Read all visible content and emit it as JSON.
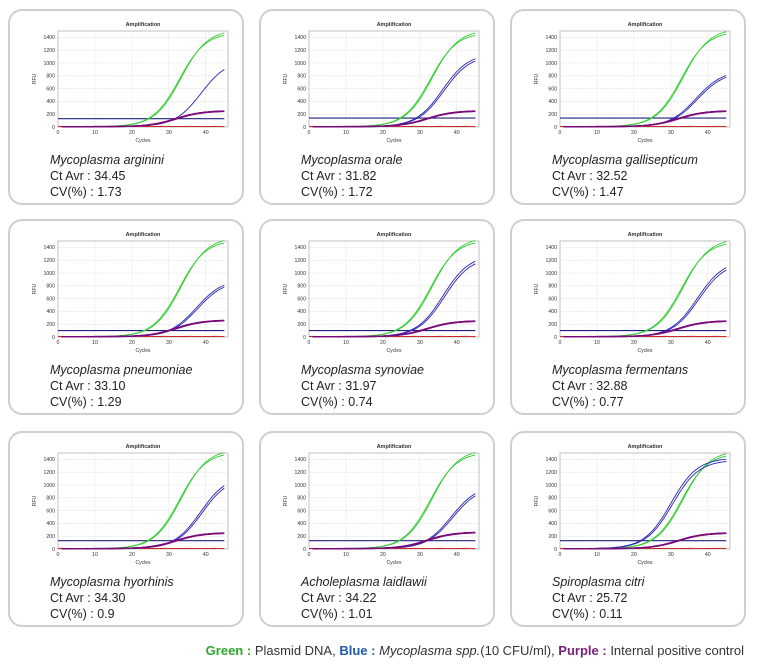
{
  "colors": {
    "green": "#33cc33",
    "blue": "#2727b6",
    "purple": "#7a0a7a",
    "threshold": "#202080",
    "baseline_red": "#cc2222"
  },
  "legend": {
    "green_key": "Green :",
    "green_text": "Plasmid DNA,",
    "blue_key": "Blue :",
    "blue_text_italic": "Mycoplasma spp.",
    "blue_text": "(10 CFU/ml),",
    "purple_key": "Purple :",
    "purple_text": "Internal positive control"
  },
  "chart_data": [
    {
      "type": "line",
      "title": "Amplification",
      "xlabel": "Cycles",
      "ylabel": "RFU",
      "xlim": [
        0,
        46
      ],
      "ylim": [
        0,
        1500
      ],
      "xticks": [
        0,
        10,
        20,
        30,
        40
      ],
      "yticks": [
        0,
        200,
        400,
        600,
        800,
        1000,
        1200,
        1400
      ],
      "threshold": 130,
      "series": [
        {
          "name": "Plasmid DNA",
          "color_key": "green",
          "ct": 29.0,
          "plateau": 1520,
          "replicates": [
            0,
            -0.5
          ]
        },
        {
          "name": "Mycoplasma spp. (10 CFU/ml)",
          "color_key": "blue",
          "ct": 34.45,
          "plateau": 1050,
          "replicates": [
            0
          ]
        },
        {
          "name": "Internal positive control",
          "color_key": "purple",
          "ct": 27.5,
          "plateau": 250,
          "replicates": [
            0,
            0.3
          ]
        }
      ],
      "species": "Mycoplasma arginini",
      "ct_text": "Ct Avr : 34.45",
      "cv_text": "CV(%) : 1.73"
    },
    {
      "type": "line",
      "title": "Amplification",
      "xlabel": "Cycles",
      "ylabel": "RFU",
      "xlim": [
        0,
        46
      ],
      "ylim": [
        0,
        1500
      ],
      "xticks": [
        0,
        10,
        20,
        30,
        40
      ],
      "yticks": [
        0,
        200,
        400,
        600,
        800,
        1000,
        1200,
        1400
      ],
      "threshold": 140,
      "series": [
        {
          "name": "Plasmid DNA",
          "color_key": "green",
          "ct": 29.0,
          "plateau": 1520,
          "replicates": [
            0,
            -0.5
          ]
        },
        {
          "name": "Mycoplasma spp. (10 CFU/ml)",
          "color_key": "blue",
          "ct": 31.82,
          "plateau": 1150,
          "replicates": [
            0,
            0.4
          ]
        },
        {
          "name": "Internal positive control",
          "color_key": "purple",
          "ct": 27.5,
          "plateau": 250,
          "replicates": [
            0,
            0.3
          ]
        }
      ],
      "species": "Mycoplasma orale",
      "ct_text": "Ct Avr : 31.82",
      "cv_text": "CV(%) : 1.72"
    },
    {
      "type": "line",
      "title": "Amplification",
      "xlabel": "Cycles",
      "ylabel": "RFU",
      "xlim": [
        0,
        46
      ],
      "ylim": [
        0,
        1500
      ],
      "xticks": [
        0,
        10,
        20,
        30,
        40
      ],
      "yticks": [
        0,
        200,
        400,
        600,
        800,
        1000,
        1200,
        1400
      ],
      "threshold": 140,
      "series": [
        {
          "name": "Plasmid DNA",
          "color_key": "green",
          "ct": 29.0,
          "plateau": 1540,
          "replicates": [
            0,
            -0.5
          ]
        },
        {
          "name": "Mycoplasma spp. (10 CFU/ml)",
          "color_key": "blue",
          "ct": 32.52,
          "plateau": 880,
          "replicates": [
            0,
            0.4
          ]
        },
        {
          "name": "Internal positive control",
          "color_key": "purple",
          "ct": 27.5,
          "plateau": 250,
          "replicates": [
            0,
            0.3
          ]
        }
      ],
      "species": "Mycoplasma gallisepticum",
      "ct_text": "Ct Avr : 32.52",
      "cv_text": "CV(%) : 1.47"
    },
    {
      "type": "line",
      "title": "Amplification",
      "xlabel": "Cycles",
      "ylabel": "RFU",
      "xlim": [
        0,
        46
      ],
      "ylim": [
        0,
        1500
      ],
      "xticks": [
        0,
        10,
        20,
        30,
        40
      ],
      "yticks": [
        0,
        200,
        400,
        600,
        800,
        1000,
        1200,
        1400
      ],
      "threshold": 100,
      "series": [
        {
          "name": "Plasmid DNA",
          "color_key": "green",
          "ct": 29.0,
          "plateau": 1560,
          "replicates": [
            0,
            -0.5
          ]
        },
        {
          "name": "Mycoplasma spp. (10 CFU/ml)",
          "color_key": "blue",
          "ct": 33.1,
          "plateau": 900,
          "replicates": [
            0,
            0.4
          ]
        },
        {
          "name": "Internal positive control",
          "color_key": "purple",
          "ct": 27.5,
          "plateau": 260,
          "replicates": [
            0,
            0.3
          ]
        }
      ],
      "species": "Mycoplasma pneumoniae",
      "ct_text": "Ct Avr : 33.10",
      "cv_text": "CV(%) : 1.29"
    },
    {
      "type": "line",
      "title": "Amplification",
      "xlabel": "Cycles",
      "ylabel": "RFU",
      "xlim": [
        0,
        46
      ],
      "ylim": [
        0,
        1500
      ],
      "xticks": [
        0,
        10,
        20,
        30,
        40
      ],
      "yticks": [
        0,
        200,
        400,
        600,
        800,
        1000,
        1200,
        1400
      ],
      "threshold": 100,
      "series": [
        {
          "name": "Plasmid DNA",
          "color_key": "green",
          "ct": 29.0,
          "plateau": 1560,
          "replicates": [
            0,
            -0.5
          ]
        },
        {
          "name": "Mycoplasma spp. (10 CFU/ml)",
          "color_key": "blue",
          "ct": 31.97,
          "plateau": 1280,
          "replicates": [
            0,
            0.4
          ]
        },
        {
          "name": "Internal positive control",
          "color_key": "purple",
          "ct": 27.5,
          "plateau": 250,
          "replicates": [
            0,
            0.3
          ]
        }
      ],
      "species": "Mycoplasma synoviae",
      "ct_text": "Ct Avr : 31.97",
      "cv_text": "CV(%) : 0.74"
    },
    {
      "type": "line",
      "title": "Amplification",
      "xlabel": "Cycles",
      "ylabel": "RFU",
      "xlim": [
        0,
        46
      ],
      "ylim": [
        0,
        1500
      ],
      "xticks": [
        0,
        10,
        20,
        30,
        40
      ],
      "yticks": [
        0,
        200,
        400,
        600,
        800,
        1000,
        1200,
        1400
      ],
      "threshold": 100,
      "series": [
        {
          "name": "Plasmid DNA",
          "color_key": "green",
          "ct": 29.0,
          "plateau": 1540,
          "replicates": [
            0,
            -0.5
          ]
        },
        {
          "name": "Mycoplasma spp. (10 CFU/ml)",
          "color_key": "blue",
          "ct": 32.88,
          "plateau": 1200,
          "replicates": [
            0,
            0.4
          ]
        },
        {
          "name": "Internal positive control",
          "color_key": "purple",
          "ct": 27.5,
          "plateau": 250,
          "replicates": [
            0,
            0.3
          ]
        }
      ],
      "species": "Mycoplasma fermentans",
      "ct_text": "Ct Avr : 32.88",
      "cv_text": "CV(%) : 0.77"
    },
    {
      "type": "line",
      "title": "Amplification",
      "xlabel": "Cycles",
      "ylabel": "RFU",
      "xlim": [
        0,
        46
      ],
      "ylim": [
        0,
        1500
      ],
      "xticks": [
        0,
        10,
        20,
        30,
        40
      ],
      "yticks": [
        0,
        200,
        400,
        600,
        800,
        1000,
        1200,
        1400
      ],
      "threshold": 130,
      "series": [
        {
          "name": "Plasmid DNA",
          "color_key": "green",
          "ct": 29.0,
          "plateau": 1560,
          "replicates": [
            0,
            -0.5
          ]
        },
        {
          "name": "Mycoplasma spp. (10 CFU/ml)",
          "color_key": "blue",
          "ct": 34.3,
          "plateau": 1150,
          "replicates": [
            0,
            0.4
          ]
        },
        {
          "name": "Internal positive control",
          "color_key": "purple",
          "ct": 27.5,
          "plateau": 250,
          "replicates": [
            0,
            0.3
          ]
        }
      ],
      "species": "Mycoplasma hyorhinis",
      "ct_text": "Ct Avr : 34.30",
      "cv_text": "CV(%) : 0.9"
    },
    {
      "type": "line",
      "title": "Amplification",
      "xlabel": "Cycles",
      "ylabel": "RFU",
      "xlim": [
        0,
        46
      ],
      "ylim": [
        0,
        1500
      ],
      "xticks": [
        0,
        10,
        20,
        30,
        40
      ],
      "yticks": [
        0,
        200,
        400,
        600,
        800,
        1000,
        1200,
        1400
      ],
      "threshold": 130,
      "series": [
        {
          "name": "Plasmid DNA",
          "color_key": "green",
          "ct": 29.0,
          "plateau": 1560,
          "replicates": [
            0,
            -0.5
          ]
        },
        {
          "name": "Mycoplasma spp. (10 CFU/ml)",
          "color_key": "blue",
          "ct": 34.22,
          "plateau": 1000,
          "replicates": [
            0,
            0.4
          ]
        },
        {
          "name": "Internal positive control",
          "color_key": "purple",
          "ct": 27.5,
          "plateau": 260,
          "replicates": [
            0,
            0.3
          ]
        }
      ],
      "species": "Acholeplasma laidlawii",
      "ct_text": "Ct Avr : 34.22",
      "cv_text": "CV(%) : 1.01"
    },
    {
      "type": "line",
      "title": "Amplification",
      "xlabel": "Cycles",
      "ylabel": "RFU",
      "xlim": [
        0,
        46
      ],
      "ylim": [
        0,
        1500
      ],
      "xticks": [
        0,
        10,
        20,
        30,
        40
      ],
      "yticks": [
        0,
        200,
        400,
        600,
        800,
        1000,
        1200,
        1400
      ],
      "threshold": 130,
      "series": [
        {
          "name": "Plasmid DNA",
          "color_key": "green",
          "ct": 29.0,
          "plateau": 1540,
          "replicates": [
            0,
            -0.5
          ]
        },
        {
          "name": "Mycoplasma spp. (10 CFU/ml)",
          "color_key": "blue",
          "ct": 25.72,
          "plateau": 1420,
          "replicates": [
            0,
            0.4
          ]
        },
        {
          "name": "Internal positive control",
          "color_key": "purple",
          "ct": 27.5,
          "plateau": 250,
          "replicates": [
            0,
            0.3
          ]
        }
      ],
      "species": "Spiroplasma citri",
      "ct_text": "Ct Avr : 25.72",
      "cv_text": "CV(%) : 0.11"
    }
  ]
}
